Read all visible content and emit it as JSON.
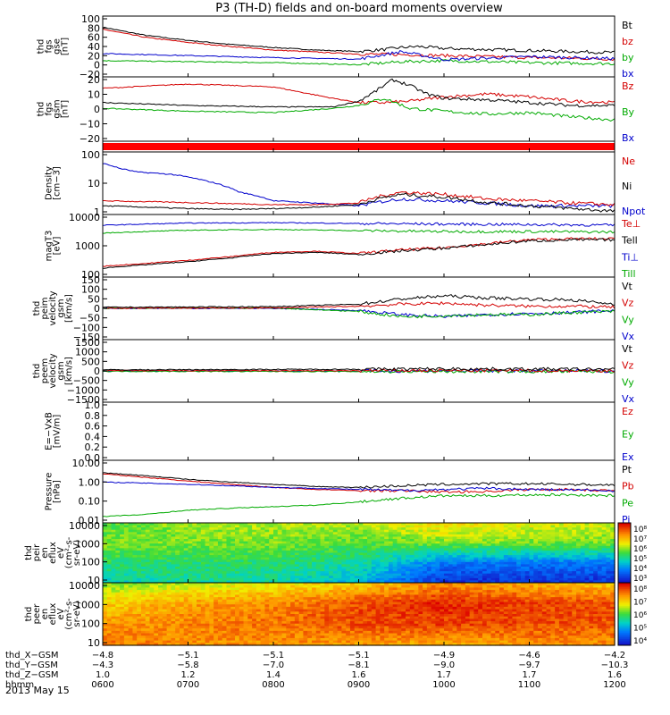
{
  "title": "P3 (TH-D) fields and on-board moments overview",
  "date_label": "2013 May 15",
  "chart_data": [
    {
      "type": "line",
      "ylabel": [
        "thd",
        "fgs",
        "gse",
        "[nT]"
      ],
      "yscale": "linear",
      "ylim": [
        -20,
        100
      ],
      "ticks": [
        "100",
        "80",
        "60",
        "40",
        "20",
        "0",
        "−20"
      ],
      "legend": [
        "Bt",
        "bz",
        "by",
        "bx"
      ],
      "legend_colors": [
        "#000000",
        "#d40000",
        "#00aa00",
        "#0000cc"
      ],
      "series": [
        {
          "name": "Bt",
          "color": "#000000",
          "x": [
            6,
            6.5,
            7,
            7.5,
            8,
            8.5,
            9,
            9.3,
            9.5,
            9.7,
            10,
            10.5,
            11,
            11.5,
            12
          ],
          "y": [
            78,
            62,
            52,
            44,
            38,
            33,
            30,
            34,
            38,
            40,
            36,
            34,
            32,
            30,
            28
          ]
        },
        {
          "name": "bz",
          "color": "#d40000",
          "x": [
            6,
            6.5,
            7,
            7.5,
            8,
            8.5,
            9,
            9.5,
            10,
            10.5,
            11,
            11.5,
            12
          ],
          "y": [
            74,
            58,
            48,
            40,
            33,
            29,
            25,
            24,
            22,
            20,
            18,
            17,
            15
          ]
        },
        {
          "name": "by",
          "color": "#00aa00",
          "x": [
            6,
            7,
            8,
            9,
            9.5,
            10,
            11,
            12
          ],
          "y": [
            12,
            10,
            8,
            4,
            10,
            12,
            8,
            6
          ]
        },
        {
          "name": "bx",
          "color": "#0000cc",
          "x": [
            6,
            7,
            8,
            9,
            9.5,
            10,
            11,
            12
          ],
          "y": [
            26,
            22,
            18,
            15,
            30,
            14,
            20,
            16
          ]
        }
      ]
    },
    {
      "type": "line",
      "ylabel": [
        "thd",
        "fgs",
        "gsm",
        "[nT]"
      ],
      "yscale": "linear",
      "ylim": [
        -25,
        20
      ],
      "ticks": [
        "20",
        "10",
        "0",
        "−10",
        "−20"
      ],
      "legend": [
        "Bz",
        "By",
        "Bx"
      ],
      "legend_colors": [
        "#d40000",
        "#00aa00",
        "#0000cc"
      ],
      "series": [
        {
          "name": "Bz",
          "color": "#d40000",
          "x": [
            6,
            7,
            8,
            8.7,
            9,
            9.3,
            9.6,
            10,
            10.5,
            11,
            11.5,
            12
          ],
          "y": [
            12,
            15,
            13,
            5,
            2,
            2,
            3,
            6,
            8,
            6,
            3,
            2
          ]
        },
        {
          "name": "By",
          "color": "#00aa00",
          "x": [
            6,
            6.5,
            7,
            8,
            8.7,
            9,
            9.3,
            9.6,
            10,
            10.5,
            11,
            11.5,
            12
          ],
          "y": [
            -2,
            -3,
            -4,
            -5,
            -2,
            0,
            5,
            -2,
            -4,
            -6,
            -5,
            -8,
            -10
          ]
        },
        {
          "name": "Bx",
          "color": "#000000",
          "x": [
            6,
            7,
            8,
            8.7,
            9,
            9.2,
            9.4,
            9.6,
            9.8,
            10,
            10.5,
            11,
            11.5,
            12
          ],
          "y": [
            2,
            0,
            -1,
            -1,
            3,
            10,
            18,
            14,
            8,
            5,
            4,
            2,
            0,
            0
          ]
        }
      ]
    },
    {
      "type": "line",
      "ylabel": [],
      "yscale": "linear",
      "ylim": [
        0,
        1
      ],
      "ticks": [],
      "legend": [],
      "legend_colors": [],
      "series": []
    },
    {
      "type": "line",
      "ylabel": [
        "Density",
        "[cm−3]"
      ],
      "yscale": "log",
      "ylim": [
        1,
        150
      ],
      "ticks": [
        "100",
        "10",
        "1"
      ],
      "legend": [
        "Ne",
        "Ni",
        "Npot"
      ],
      "legend_colors": [
        "#d40000",
        "#000000",
        "#0000cc"
      ],
      "series": [
        {
          "name": "Npot",
          "color": "#0000cc",
          "x": [
            6,
            6.2,
            6.4,
            6.8,
            7.2,
            7.6,
            8,
            8.5,
            9,
            9.5,
            10,
            10.5,
            11,
            12
          ],
          "y": [
            60,
            40,
            30,
            25,
            15,
            6,
            3,
            2.5,
            2,
            3.5,
            3,
            2.5,
            2,
            2
          ]
        },
        {
          "name": "Ne",
          "color": "#d40000",
          "x": [
            6,
            6.5,
            7,
            7.5,
            8,
            8.5,
            9,
            9.5,
            10,
            10.5,
            11,
            11.5,
            12
          ],
          "y": [
            3,
            2.8,
            2.6,
            2.4,
            2.2,
            2.2,
            2.5,
            6,
            5,
            3.5,
            3,
            2.5,
            2.2
          ]
        },
        {
          "name": "Ni",
          "color": "#000000",
          "x": [
            6,
            6.5,
            7,
            7.5,
            8,
            8.5,
            9,
            9.5,
            10,
            10.5,
            11,
            11.5,
            12
          ],
          "y": [
            2,
            1.8,
            1.6,
            1.5,
            1.6,
            1.8,
            2.2,
            5,
            4,
            2.6,
            2,
            1.6,
            1.3
          ]
        }
      ]
    },
    {
      "type": "line",
      "ylabel": [
        "magT3",
        "[eV]"
      ],
      "yscale": "log",
      "ylim": [
        20,
        12000
      ],
      "ticks": [
        "10000",
        "1000",
        "100"
      ],
      "legend": [
        "Te⊥",
        "Tell",
        "Ti⊥",
        "Till"
      ],
      "legend_colors": [
        "#d40000",
        "#000000",
        "#0000cc",
        "#00aa00"
      ],
      "series": [
        {
          "name": "Ti⊥",
          "color": "#0000cc",
          "x": [
            6,
            7,
            8,
            9,
            10,
            11,
            12
          ],
          "y": [
            4000,
            5000,
            5200,
            4800,
            4500,
            4300,
            4000
          ]
        },
        {
          "name": "Till",
          "color": "#00aa00",
          "x": [
            6,
            7,
            8,
            9,
            10,
            11,
            12
          ],
          "y": [
            1800,
            2400,
            2600,
            2300,
            2100,
            2100,
            2000
          ]
        },
        {
          "name": "Te⊥",
          "color": "#d40000",
          "x": [
            6,
            6.5,
            7,
            7.5,
            8,
            8.5,
            9,
            9.5,
            10,
            10.5,
            11,
            11.5,
            12
          ],
          "y": [
            60,
            80,
            110,
            160,
            250,
            280,
            220,
            320,
            400,
            600,
            900,
            1000,
            1000
          ]
        },
        {
          "name": "Tell",
          "color": "#000000",
          "x": [
            6,
            6.5,
            7,
            7.5,
            8,
            8.5,
            9,
            9.5,
            10,
            10.5,
            11,
            11.5,
            12
          ],
          "y": [
            50,
            70,
            95,
            140,
            220,
            250,
            200,
            290,
            380,
            550,
            800,
            900,
            900
          ]
        }
      ]
    },
    {
      "type": "line",
      "ylabel": [
        "thd",
        "peim",
        "velocity",
        "gsm",
        "[km/s]"
      ],
      "yscale": "linear",
      "ylim": [
        -150,
        150
      ],
      "ticks": [
        "150",
        "100",
        "50",
        "0",
        "−50",
        "−100",
        "−150"
      ],
      "legend": [
        "Vt",
        "Vz",
        "Vy",
        "Vx"
      ],
      "legend_colors": [
        "#000000",
        "#d40000",
        "#00aa00",
        "#0000cc"
      ],
      "series": [
        {
          "name": "Vx",
          "color": "#0000cc",
          "x": [
            6,
            8,
            9,
            9.5,
            10,
            10.5,
            11,
            11.5,
            12
          ],
          "y": [
            0,
            0,
            -10,
            -30,
            -40,
            -30,
            -25,
            -20,
            -10
          ]
        },
        {
          "name": "Vy",
          "color": "#00aa00",
          "x": [
            6,
            8,
            9,
            9.5,
            10,
            10.5,
            11,
            11.5,
            12
          ],
          "y": [
            0,
            2,
            -15,
            -40,
            -35,
            -30,
            -30,
            -20,
            -15
          ]
        },
        {
          "name": "Vz",
          "color": "#d40000",
          "x": [
            6,
            8,
            9,
            9.5,
            10,
            10.5,
            11,
            11.5,
            12
          ],
          "y": [
            0,
            2,
            10,
            20,
            25,
            15,
            10,
            10,
            5
          ]
        },
        {
          "name": "Vt",
          "color": "#000000",
          "x": [
            6,
            8,
            9,
            9.5,
            10,
            10.5,
            11,
            11.5,
            12
          ],
          "y": [
            5,
            8,
            20,
            45,
            60,
            50,
            45,
            40,
            20
          ]
        }
      ]
    },
    {
      "type": "line",
      "ylabel": [
        "thd",
        "peem",
        "velocity",
        "gsm",
        "[km/s]"
      ],
      "yscale": "linear",
      "ylim": [
        -1500,
        1500
      ],
      "ticks": [
        "1500",
        "1000",
        "500",
        "0",
        "−500",
        "−1000",
        "−1500"
      ],
      "legend": [
        "Vt",
        "Vz",
        "Vy",
        "Vx"
      ],
      "legend_colors": [
        "#000000",
        "#d40000",
        "#00aa00",
        "#0000cc"
      ],
      "series": [
        {
          "name": "Vx",
          "color": "#0000cc",
          "x": [
            6,
            12
          ],
          "y": [
            0,
            0
          ]
        },
        {
          "name": "Vy",
          "color": "#00aa00",
          "x": [
            6,
            9,
            10,
            12
          ],
          "y": [
            -20,
            -30,
            -30,
            -30
          ]
        },
        {
          "name": "Vz",
          "color": "#d40000",
          "x": [
            6,
            9,
            10,
            12
          ],
          "y": [
            10,
            10,
            20,
            10
          ]
        },
        {
          "name": "Vt",
          "color": "#000000",
          "x": [
            6,
            9,
            10,
            12
          ],
          "y": [
            50,
            80,
            100,
            80
          ]
        }
      ]
    },
    {
      "type": "line",
      "ylabel": [
        "E=−VxB",
        "[mV/m]"
      ],
      "yscale": "linear",
      "ylim": [
        0,
        1
      ],
      "ticks": [
        "1.0",
        "0.8",
        "0.6",
        "0.4",
        "0.2",
        "0.0"
      ],
      "legend": [
        "Ez",
        "Ey",
        "Ex"
      ],
      "legend_colors": [
        "#d40000",
        "#00aa00",
        "#0000cc"
      ],
      "series": []
    },
    {
      "type": "line",
      "ylabel": [
        "Pressure",
        "[nPa]"
      ],
      "yscale": "log",
      "ylim": [
        0.01,
        10
      ],
      "ticks": [
        "10.00",
        "1.00",
        "0.10",
        "0.01"
      ],
      "legend": [
        "Pt",
        "Pb",
        "Pe",
        "Pi"
      ],
      "legend_colors": [
        "#000000",
        "#d40000",
        "#00aa00",
        "#0000cc"
      ],
      "series": [
        {
          "name": "Pt",
          "color": "#000000",
          "x": [
            6,
            6.5,
            7,
            7.5,
            8,
            8.5,
            9,
            9.5,
            10,
            10.5,
            11,
            11.5,
            12
          ],
          "y": [
            2.5,
            1.8,
            1.2,
            0.9,
            0.7,
            0.55,
            0.5,
            0.6,
            0.7,
            0.75,
            0.75,
            0.7,
            0.65
          ]
        },
        {
          "name": "Pb",
          "color": "#d40000",
          "x": [
            6,
            6.5,
            7,
            7.5,
            8,
            8.5,
            9,
            9.5,
            10,
            10.5,
            11,
            11.5,
            12
          ],
          "y": [
            2.2,
            1.5,
            1.0,
            0.7,
            0.5,
            0.4,
            0.35,
            0.35,
            0.3,
            0.32,
            0.4,
            0.4,
            0.35
          ]
        },
        {
          "name": "Pi",
          "color": "#0000cc",
          "x": [
            6,
            7,
            8,
            9,
            9.5,
            10,
            10.5,
            11,
            11.5,
            12
          ],
          "y": [
            0.9,
            0.7,
            0.5,
            0.4,
            0.35,
            0.4,
            0.45,
            0.4,
            0.38,
            0.35
          ]
        },
        {
          "name": "Pe",
          "color": "#00aa00",
          "x": [
            6,
            6.5,
            7,
            7.5,
            8,
            8.5,
            9,
            9.5,
            10,
            10.5,
            11,
            11.5,
            12
          ],
          "y": [
            0.02,
            0.025,
            0.04,
            0.05,
            0.06,
            0.07,
            0.1,
            0.15,
            0.2,
            0.2,
            0.22,
            0.22,
            0.2
          ]
        }
      ]
    },
    {
      "type": "heatmap",
      "ylabel": [
        "thd",
        "peir",
        "en",
        "eflux",
        "eV",
        "(cm²-s-",
        "sr-eV)"
      ],
      "yscale": "log",
      "ylim": [
        10,
        15000
      ],
      "ticks": [
        "10000",
        "1000",
        "100",
        "10"
      ],
      "colorbar": {
        "ticks": [
          "10⁸",
          "10⁷",
          "10⁶",
          "10⁵",
          "10⁴",
          "10³"
        ]
      },
      "energy_bands": [
        10,
        100,
        1000,
        10000
      ],
      "times": [
        6,
        7,
        8,
        9,
        10,
        11,
        12
      ],
      "level": [
        [
          0.35,
          0.4,
          0.38,
          0.3,
          0.05,
          0.05,
          0.05
        ],
        [
          0.45,
          0.45,
          0.45,
          0.4,
          0.2,
          0.2,
          0.2
        ],
        [
          0.55,
          0.55,
          0.55,
          0.52,
          0.55,
          0.55,
          0.55
        ],
        [
          0.5,
          0.58,
          0.6,
          0.6,
          0.7,
          0.65,
          0.62
        ]
      ]
    },
    {
      "type": "heatmap",
      "ylabel": [
        "thd",
        "peer",
        "en",
        "eflux",
        "eV",
        "(cm²-s-",
        "sr-eV)"
      ],
      "yscale": "log",
      "ylim": [
        8,
        15000
      ],
      "ticks": [
        "10000",
        "1000",
        "100",
        "10"
      ],
      "colorbar": {
        "ticks": [
          "10⁸",
          "10⁷",
          "10⁶",
          "10⁵",
          "10⁴"
        ]
      },
      "energy_bands": [
        10,
        100,
        1000,
        10000
      ],
      "times": [
        6,
        7,
        8,
        9,
        10,
        11,
        12
      ],
      "level": [
        [
          0.85,
          0.8,
          0.8,
          0.78,
          0.75,
          0.8,
          0.8
        ],
        [
          0.8,
          0.82,
          0.85,
          0.9,
          0.92,
          0.9,
          0.88
        ],
        [
          0.7,
          0.78,
          0.82,
          0.9,
          0.95,
          0.92,
          0.9
        ],
        [
          0.55,
          0.6,
          0.65,
          0.7,
          0.8,
          0.75,
          0.7
        ]
      ]
    }
  ],
  "xaxis": {
    "xlim": [
      6,
      12
    ],
    "tick_times": [
      6,
      7,
      8,
      9,
      10,
      11,
      12
    ],
    "rows": [
      {
        "label": "thd_X−GSM",
        "values": [
          "−4.8",
          "−5.1",
          "−5.1",
          "−5.1",
          "−4.9",
          "−4.6",
          "−4.2"
        ]
      },
      {
        "label": "thd_Y−GSM",
        "values": [
          "−4.3",
          "−5.8",
          "−7.0",
          "−8.1",
          "−9.0",
          "−9.7",
          "−10.3"
        ]
      },
      {
        "label": "thd_Z−GSM",
        "values": [
          "1.0",
          "1.2",
          "1.4",
          "1.6",
          "1.7",
          "1.7",
          "1.6"
        ]
      },
      {
        "label": "hhmm",
        "values": [
          "0600",
          "0700",
          "0800",
          "0900",
          "1000",
          "1100",
          "1200"
        ]
      }
    ]
  }
}
